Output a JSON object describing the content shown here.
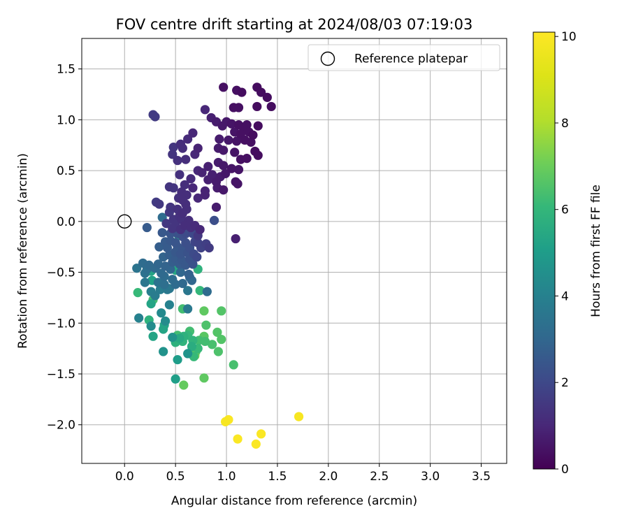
{
  "chart_data": {
    "type": "scatter",
    "title": "FOV centre drift starting at 2024/08/03 07:19:03",
    "xlabel": "Angular distance from reference (arcmin)",
    "ylabel": "Rotation from reference (arcmin)",
    "xlim": [
      -0.42,
      3.75
    ],
    "ylim": [
      -2.38,
      1.8
    ],
    "x_ticks": [
      0.0,
      0.5,
      1.0,
      1.5,
      2.0,
      2.5,
      3.0,
      3.5
    ],
    "x_tick_labels": [
      "0.0",
      "0.5",
      "1.0",
      "1.5",
      "2.0",
      "2.5",
      "3.0",
      "3.5"
    ],
    "y_ticks": [
      1.5,
      1.0,
      0.5,
      0.0,
      -0.5,
      -1.0,
      -1.5,
      -2.0
    ],
    "y_tick_labels": [
      "1.5",
      "1.0",
      "0.5",
      "0.0",
      "−0.5",
      "−1.0",
      "−1.5",
      "−2.0"
    ],
    "grid": true,
    "colormap": "viridis",
    "colorbar": {
      "label": "Hours from first FF file",
      "range": [
        0,
        10.1
      ],
      "ticks": [
        0,
        2,
        4,
        6,
        8,
        10
      ],
      "tick_labels": [
        "0",
        "2",
        "4",
        "6",
        "8",
        "10"
      ]
    },
    "legend": {
      "position": "top-right",
      "entries": [
        {
          "label": "Reference platepar",
          "marker": "open-circle"
        }
      ]
    },
    "reference_point": {
      "x": 0.0,
      "y": 0.0
    },
    "points": [
      {
        "x": 1.3,
        "y": 1.32,
        "h": 0.3
      },
      {
        "x": 1.34,
        "y": 1.27,
        "h": 0.3
      },
      {
        "x": 0.97,
        "y": 1.32,
        "h": 0.4
      },
      {
        "x": 1.1,
        "y": 1.29,
        "h": 0.4
      },
      {
        "x": 1.15,
        "y": 1.27,
        "h": 0.3
      },
      {
        "x": 1.4,
        "y": 1.22,
        "h": 0.3
      },
      {
        "x": 1.44,
        "y": 1.13,
        "h": 0.3
      },
      {
        "x": 1.3,
        "y": 1.13,
        "h": 0.3
      },
      {
        "x": 1.12,
        "y": 1.12,
        "h": 0.4
      },
      {
        "x": 1.07,
        "y": 1.12,
        "h": 0.4
      },
      {
        "x": 0.79,
        "y": 1.1,
        "h": 1.0
      },
      {
        "x": 0.28,
        "y": 1.05,
        "h": 1.6
      },
      {
        "x": 0.3,
        "y": 1.03,
        "h": 1.6
      },
      {
        "x": 0.85,
        "y": 1.02,
        "h": 0.8
      },
      {
        "x": 0.9,
        "y": 0.98,
        "h": 0.7
      },
      {
        "x": 1.0,
        "y": 0.98,
        "h": 0.6
      },
      {
        "x": 1.05,
        "y": 0.96,
        "h": 0.5
      },
      {
        "x": 0.96,
        "y": 0.94,
        "h": 0.6
      },
      {
        "x": 1.12,
        "y": 0.95,
        "h": 0.4
      },
      {
        "x": 1.2,
        "y": 0.95,
        "h": 0.4
      },
      {
        "x": 1.31,
        "y": 0.94,
        "h": 0.3
      },
      {
        "x": 1.17,
        "y": 0.91,
        "h": 0.4
      },
      {
        "x": 1.22,
        "y": 0.88,
        "h": 0.4
      },
      {
        "x": 1.08,
        "y": 0.88,
        "h": 0.5
      },
      {
        "x": 1.14,
        "y": 0.86,
        "h": 0.4
      },
      {
        "x": 1.26,
        "y": 0.85,
        "h": 0.3
      },
      {
        "x": 0.67,
        "y": 0.87,
        "h": 1.0
      },
      {
        "x": 0.62,
        "y": 0.81,
        "h": 1.1
      },
      {
        "x": 0.93,
        "y": 0.81,
        "h": 0.7
      },
      {
        "x": 1.02,
        "y": 0.8,
        "h": 0.6
      },
      {
        "x": 1.1,
        "y": 0.79,
        "h": 0.5
      },
      {
        "x": 1.18,
        "y": 0.8,
        "h": 0.4
      },
      {
        "x": 1.24,
        "y": 0.78,
        "h": 0.4
      },
      {
        "x": 0.55,
        "y": 0.76,
        "h": 1.2
      },
      {
        "x": 0.48,
        "y": 0.73,
        "h": 1.4
      },
      {
        "x": 0.57,
        "y": 0.72,
        "h": 1.2
      },
      {
        "x": 0.72,
        "y": 0.72,
        "h": 0.9
      },
      {
        "x": 0.92,
        "y": 0.72,
        "h": 0.7
      },
      {
        "x": 0.97,
        "y": 0.7,
        "h": 0.6
      },
      {
        "x": 1.08,
        "y": 0.68,
        "h": 0.5
      },
      {
        "x": 1.28,
        "y": 0.69,
        "h": 0.3
      },
      {
        "x": 1.31,
        "y": 0.65,
        "h": 0.3
      },
      {
        "x": 1.2,
        "y": 0.62,
        "h": 0.4
      },
      {
        "x": 1.14,
        "y": 0.61,
        "h": 0.4
      },
      {
        "x": 0.47,
        "y": 0.66,
        "h": 1.4
      },
      {
        "x": 0.69,
        "y": 0.66,
        "h": 1.0
      },
      {
        "x": 0.52,
        "y": 0.6,
        "h": 1.3
      },
      {
        "x": 0.6,
        "y": 0.61,
        "h": 1.2
      },
      {
        "x": 0.92,
        "y": 0.58,
        "h": 0.7
      },
      {
        "x": 0.82,
        "y": 0.54,
        "h": 0.8
      },
      {
        "x": 0.97,
        "y": 0.55,
        "h": 0.6
      },
      {
        "x": 1.05,
        "y": 0.52,
        "h": 0.5
      },
      {
        "x": 1.12,
        "y": 0.51,
        "h": 0.5
      },
      {
        "x": 0.72,
        "y": 0.5,
        "h": 1.0
      },
      {
        "x": 0.76,
        "y": 0.48,
        "h": 0.9
      },
      {
        "x": 0.54,
        "y": 0.46,
        "h": 1.3
      },
      {
        "x": 0.86,
        "y": 0.46,
        "h": 0.8
      },
      {
        "x": 0.94,
        "y": 0.44,
        "h": 0.7
      },
      {
        "x": 0.99,
        "y": 0.47,
        "h": 0.6
      },
      {
        "x": 0.65,
        "y": 0.42,
        "h": 1.1
      },
      {
        "x": 0.82,
        "y": 0.41,
        "h": 0.8
      },
      {
        "x": 0.9,
        "y": 0.39,
        "h": 0.7
      },
      {
        "x": 1.09,
        "y": 0.39,
        "h": 0.5
      },
      {
        "x": 1.11,
        "y": 0.37,
        "h": 0.5
      },
      {
        "x": 0.59,
        "y": 0.36,
        "h": 1.2
      },
      {
        "x": 0.44,
        "y": 0.34,
        "h": 1.4
      },
      {
        "x": 0.48,
        "y": 0.33,
        "h": 1.4
      },
      {
        "x": 0.67,
        "y": 0.33,
        "h": 1.0
      },
      {
        "x": 0.91,
        "y": 0.33,
        "h": 0.7
      },
      {
        "x": 0.97,
        "y": 0.31,
        "h": 0.6
      },
      {
        "x": 0.79,
        "y": 0.3,
        "h": 0.9
      },
      {
        "x": 0.56,
        "y": 0.29,
        "h": 1.2
      },
      {
        "x": 0.61,
        "y": 0.26,
        "h": 1.2
      },
      {
        "x": 0.79,
        "y": 0.26,
        "h": 0.9
      },
      {
        "x": 0.53,
        "y": 0.23,
        "h": 1.3
      },
      {
        "x": 0.57,
        "y": 0.21,
        "h": 1.2
      },
      {
        "x": 0.72,
        "y": 0.23,
        "h": 1.0
      },
      {
        "x": 0.31,
        "y": 0.19,
        "h": 1.6
      },
      {
        "x": 0.34,
        "y": 0.17,
        "h": 1.5
      },
      {
        "x": 0.6,
        "y": 0.17,
        "h": 1.2
      },
      {
        "x": 0.45,
        "y": 0.14,
        "h": 1.4
      },
      {
        "x": 0.52,
        "y": 0.12,
        "h": 1.3
      },
      {
        "x": 0.61,
        "y": 0.12,
        "h": 1.2
      },
      {
        "x": 0.44,
        "y": 0.09,
        "h": 1.5
      },
      {
        "x": 0.57,
        "y": 0.08,
        "h": 1.2
      },
      {
        "x": 0.9,
        "y": 0.14,
        "h": 0.7
      },
      {
        "x": 0.54,
        "y": 0.05,
        "h": 1.3
      },
      {
        "x": 0.37,
        "y": 0.04,
        "h": 3.2
      },
      {
        "x": 0.48,
        "y": 0.02,
        "h": 1.4
      },
      {
        "x": 0.56,
        "y": 0.02,
        "h": 1.3
      },
      {
        "x": 0.63,
        "y": 0.01,
        "h": 1.2
      },
      {
        "x": 0.41,
        "y": -0.02,
        "h": 1.5
      },
      {
        "x": 0.5,
        "y": -0.03,
        "h": 1.4
      },
      {
        "x": 0.59,
        "y": -0.04,
        "h": 1.2
      },
      {
        "x": 0.69,
        "y": -0.04,
        "h": 1.1
      },
      {
        "x": 0.88,
        "y": 0.01,
        "h": 2.2
      },
      {
        "x": 0.22,
        "y": -0.06,
        "h": 2.6
      },
      {
        "x": 0.47,
        "y": -0.07,
        "h": 1.4
      },
      {
        "x": 0.55,
        "y": -0.08,
        "h": 1.3
      },
      {
        "x": 0.65,
        "y": -0.06,
        "h": 1.2
      },
      {
        "x": 0.74,
        "y": -0.08,
        "h": 1.0
      },
      {
        "x": 0.37,
        "y": -0.11,
        "h": 2.5
      },
      {
        "x": 0.45,
        "y": -0.12,
        "h": 2.4
      },
      {
        "x": 0.52,
        "y": -0.12,
        "h": 2.3
      },
      {
        "x": 0.57,
        "y": -0.15,
        "h": 2.2
      },
      {
        "x": 0.6,
        "y": -0.12,
        "h": 2.1
      },
      {
        "x": 0.67,
        "y": -0.12,
        "h": 2.0
      },
      {
        "x": 0.72,
        "y": -0.14,
        "h": 1.5
      },
      {
        "x": 0.53,
        "y": -0.14,
        "h": 5.3
      },
      {
        "x": 1.09,
        "y": -0.17,
        "h": 0.8
      },
      {
        "x": 0.4,
        "y": -0.2,
        "h": 2.6
      },
      {
        "x": 0.45,
        "y": -0.19,
        "h": 2.5
      },
      {
        "x": 0.5,
        "y": -0.21,
        "h": 2.4
      },
      {
        "x": 0.6,
        "y": -0.21,
        "h": 2.2
      },
      {
        "x": 0.69,
        "y": -0.2,
        "h": 1.9
      },
      {
        "x": 0.72,
        "y": -0.21,
        "h": 1.8
      },
      {
        "x": 0.8,
        "y": -0.22,
        "h": 1.7
      },
      {
        "x": 0.34,
        "y": -0.25,
        "h": 2.7
      },
      {
        "x": 0.42,
        "y": -0.26,
        "h": 2.6
      },
      {
        "x": 0.52,
        "y": -0.25,
        "h": 2.5
      },
      {
        "x": 0.57,
        "y": -0.27,
        "h": 2.4
      },
      {
        "x": 0.64,
        "y": -0.26,
        "h": 2.2
      },
      {
        "x": 0.75,
        "y": -0.26,
        "h": 1.8
      },
      {
        "x": 0.83,
        "y": -0.26,
        "h": 1.6
      },
      {
        "x": 0.5,
        "y": -0.3,
        "h": 2.5
      },
      {
        "x": 0.55,
        "y": -0.32,
        "h": 2.4
      },
      {
        "x": 0.62,
        "y": -0.31,
        "h": 2.3
      },
      {
        "x": 0.68,
        "y": -0.32,
        "h": 2.1
      },
      {
        "x": 0.44,
        "y": -0.33,
        "h": 2.7
      },
      {
        "x": 0.38,
        "y": -0.35,
        "h": 2.9
      },
      {
        "x": 0.71,
        "y": -0.35,
        "h": 2.0
      },
      {
        "x": 0.5,
        "y": -0.37,
        "h": 2.6
      },
      {
        "x": 0.56,
        "y": -0.38,
        "h": 2.5
      },
      {
        "x": 0.64,
        "y": -0.37,
        "h": 2.3
      },
      {
        "x": 0.47,
        "y": -0.4,
        "h": 2.7
      },
      {
        "x": 0.54,
        "y": -0.42,
        "h": 2.6
      },
      {
        "x": 0.18,
        "y": -0.41,
        "h": 3.2
      },
      {
        "x": 0.24,
        "y": -0.43,
        "h": 3.1
      },
      {
        "x": 0.33,
        "y": -0.42,
        "h": 3.0
      },
      {
        "x": 0.4,
        "y": -0.44,
        "h": 2.9
      },
      {
        "x": 0.6,
        "y": -0.43,
        "h": 2.5
      },
      {
        "x": 0.67,
        "y": -0.42,
        "h": 2.3
      },
      {
        "x": 0.12,
        "y": -0.46,
        "h": 3.5
      },
      {
        "x": 0.22,
        "y": -0.47,
        "h": 3.3
      },
      {
        "x": 0.3,
        "y": -0.46,
        "h": 3.1
      },
      {
        "x": 0.45,
        "y": -0.47,
        "h": 3.0
      },
      {
        "x": 0.5,
        "y": -0.48,
        "h": 5.4
      },
      {
        "x": 0.72,
        "y": -0.47,
        "h": 5.8
      },
      {
        "x": 0.2,
        "y": -0.51,
        "h": 3.4
      },
      {
        "x": 0.26,
        "y": -0.49,
        "h": 5.3
      },
      {
        "x": 0.36,
        "y": -0.51,
        "h": 3.1
      },
      {
        "x": 0.55,
        "y": -0.5,
        "h": 3.0
      },
      {
        "x": 0.63,
        "y": -0.52,
        "h": 2.8
      },
      {
        "x": 0.39,
        "y": -0.54,
        "h": 3.2
      },
      {
        "x": 0.64,
        "y": -0.55,
        "h": 3.0
      },
      {
        "x": 0.47,
        "y": -0.57,
        "h": 3.2
      },
      {
        "x": 0.66,
        "y": -0.58,
        "h": 3.0
      },
      {
        "x": 0.2,
        "y": -0.6,
        "h": 3.6
      },
      {
        "x": 0.27,
        "y": -0.58,
        "h": 5.2
      },
      {
        "x": 0.33,
        "y": -0.6,
        "h": 3.4
      },
      {
        "x": 0.39,
        "y": -0.62,
        "h": 3.3
      },
      {
        "x": 0.5,
        "y": -0.62,
        "h": 3.2
      },
      {
        "x": 0.57,
        "y": -0.61,
        "h": 3.1
      },
      {
        "x": 0.44,
        "y": -0.66,
        "h": 3.6
      },
      {
        "x": 0.13,
        "y": -0.7,
        "h": 6.1
      },
      {
        "x": 0.26,
        "y": -0.69,
        "h": 3.9
      },
      {
        "x": 0.35,
        "y": -0.67,
        "h": 3.8
      },
      {
        "x": 0.42,
        "y": -0.67,
        "h": 3.7
      },
      {
        "x": 0.62,
        "y": -0.68,
        "h": 3.6
      },
      {
        "x": 0.74,
        "y": -0.68,
        "h": 6.0
      },
      {
        "x": 0.81,
        "y": -0.69,
        "h": 3.2
      },
      {
        "x": 0.3,
        "y": -0.73,
        "h": 3.8
      },
      {
        "x": 0.28,
        "y": -0.77,
        "h": 6.3
      },
      {
        "x": 0.26,
        "y": -0.81,
        "h": 5.3
      },
      {
        "x": 0.44,
        "y": -0.82,
        "h": 4.0
      },
      {
        "x": 0.36,
        "y": -0.9,
        "h": 4.3
      },
      {
        "x": 0.57,
        "y": -0.86,
        "h": 6.3
      },
      {
        "x": 0.62,
        "y": -0.86,
        "h": 3.7
      },
      {
        "x": 0.78,
        "y": -0.88,
        "h": 6.8
      },
      {
        "x": 0.95,
        "y": -0.88,
        "h": 6.6
      },
      {
        "x": 0.14,
        "y": -0.95,
        "h": 4.0
      },
      {
        "x": 0.24,
        "y": -0.97,
        "h": 5.8
      },
      {
        "x": 0.4,
        "y": -0.98,
        "h": 4.4
      },
      {
        "x": 0.39,
        "y": -1.02,
        "h": 5.3
      },
      {
        "x": 0.26,
        "y": -1.03,
        "h": 4.4
      },
      {
        "x": 0.8,
        "y": -1.02,
        "h": 6.5
      },
      {
        "x": 0.38,
        "y": -1.06,
        "h": 5.3
      },
      {
        "x": 0.64,
        "y": -1.08,
        "h": 6.3
      },
      {
        "x": 0.91,
        "y": -1.09,
        "h": 6.6
      },
      {
        "x": 0.52,
        "y": -1.12,
        "h": 6.3
      },
      {
        "x": 0.58,
        "y": -1.13,
        "h": 5.8
      },
      {
        "x": 0.62,
        "y": -1.12,
        "h": 6.0
      },
      {
        "x": 0.28,
        "y": -1.13,
        "h": 5.3
      },
      {
        "x": 0.47,
        "y": -1.14,
        "h": 4.6
      },
      {
        "x": 0.54,
        "y": -1.15,
        "h": 5.5
      },
      {
        "x": 0.78,
        "y": -1.13,
        "h": 6.7
      },
      {
        "x": 0.67,
        "y": -1.17,
        "h": 5.9
      },
      {
        "x": 0.73,
        "y": -1.17,
        "h": 6.3
      },
      {
        "x": 0.95,
        "y": -1.16,
        "h": 6.6
      },
      {
        "x": 0.57,
        "y": -1.18,
        "h": 5.9
      },
      {
        "x": 0.79,
        "y": -1.18,
        "h": 6.3
      },
      {
        "x": 0.5,
        "y": -1.19,
        "h": 5.8
      },
      {
        "x": 0.86,
        "y": -1.21,
        "h": 6.4
      },
      {
        "x": 0.66,
        "y": -1.23,
        "h": 5.6
      },
      {
        "x": 0.72,
        "y": -1.25,
        "h": 6.1
      },
      {
        "x": 0.38,
        "y": -1.28,
        "h": 4.6
      },
      {
        "x": 0.7,
        "y": -1.28,
        "h": 6.6
      },
      {
        "x": 0.92,
        "y": -1.28,
        "h": 6.5
      },
      {
        "x": 0.62,
        "y": -1.3,
        "h": 4.7
      },
      {
        "x": 0.69,
        "y": -1.32,
        "h": 7.3
      },
      {
        "x": 0.68,
        "y": -1.33,
        "h": 6.1
      },
      {
        "x": 0.52,
        "y": -1.36,
        "h": 5.0
      },
      {
        "x": 1.07,
        "y": -1.41,
        "h": 6.4
      },
      {
        "x": 0.78,
        "y": -1.54,
        "h": 6.8
      },
      {
        "x": 0.5,
        "y": -1.55,
        "h": 5.1
      },
      {
        "x": 0.58,
        "y": -1.61,
        "h": 6.9
      },
      {
        "x": 1.71,
        "y": -1.92,
        "h": 9.9
      },
      {
        "x": 1.02,
        "y": -1.95,
        "h": 10.0
      },
      {
        "x": 0.99,
        "y": -1.97,
        "h": 9.9
      },
      {
        "x": 1.34,
        "y": -2.09,
        "h": 10.0
      },
      {
        "x": 1.11,
        "y": -2.14,
        "h": 10.0
      },
      {
        "x": 1.29,
        "y": -2.19,
        "h": 10.0
      }
    ]
  }
}
